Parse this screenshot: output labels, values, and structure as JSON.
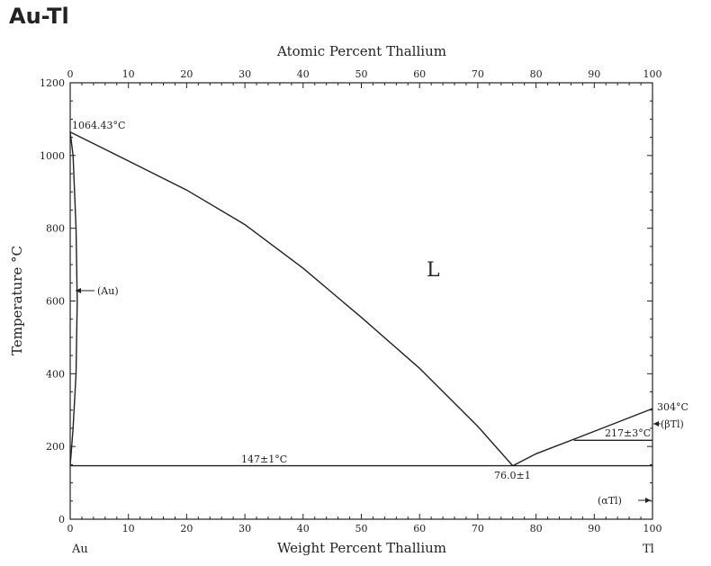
{
  "title": "Au-Tl",
  "chart_data": {
    "type": "line",
    "title": "Au-Tl",
    "xlabel": "Weight Percent Thallium",
    "x2label": "Atomic Percent Thallium",
    "ylabel": "Temperature °C",
    "xlim": [
      0,
      100
    ],
    "ylim": [
      0,
      1200
    ],
    "xticks": [
      "0",
      "10",
      "20",
      "30",
      "40",
      "50",
      "60",
      "70",
      "80",
      "90",
      "100"
    ],
    "x2ticks": [
      "0",
      "10",
      "20",
      "30",
      "40",
      "50",
      "60",
      "70",
      "80",
      "90",
      "100"
    ],
    "yticks": [
      "0",
      "200",
      "400",
      "600",
      "800",
      "1000",
      "1200"
    ],
    "left_end_label": "Au",
    "right_end_label": "Tl",
    "region_label": "L",
    "series": [
      {
        "x": [
          0,
          5,
          10,
          20,
          30,
          40,
          50,
          60,
          70,
          76
        ],
        "y": [
          1064.43,
          1025,
          985,
          905,
          810,
          690,
          555,
          415,
          255,
          147
        ]
      },
      {
        "x": [
          76,
          80,
          86.5,
          100
        ],
        "y": [
          147,
          180,
          220,
          304
        ]
      },
      {
        "x": [
          0,
          0.5,
          1.0,
          1.2,
          1.0,
          0.5,
          0
        ],
        "y": [
          1064.43,
          1000,
          800,
          600,
          400,
          250,
          147
        ]
      },
      {
        "x": [
          0,
          100
        ],
        "y": [
          147,
          147
        ]
      },
      {
        "x": [
          86.5,
          100
        ],
        "y": [
          217,
          217
        ]
      }
    ],
    "annotations": {
      "au_melting": "1064.43°C",
      "tl_melting": "304°C",
      "eutectic_temp": "147±1°C",
      "eutectic_comp": "76.0±1",
      "allotropic": "217±3°C",
      "au_phase": "(Au)",
      "beta_tl": "(βTl)",
      "alpha_tl": "(αTl)"
    },
    "grid": false
  }
}
